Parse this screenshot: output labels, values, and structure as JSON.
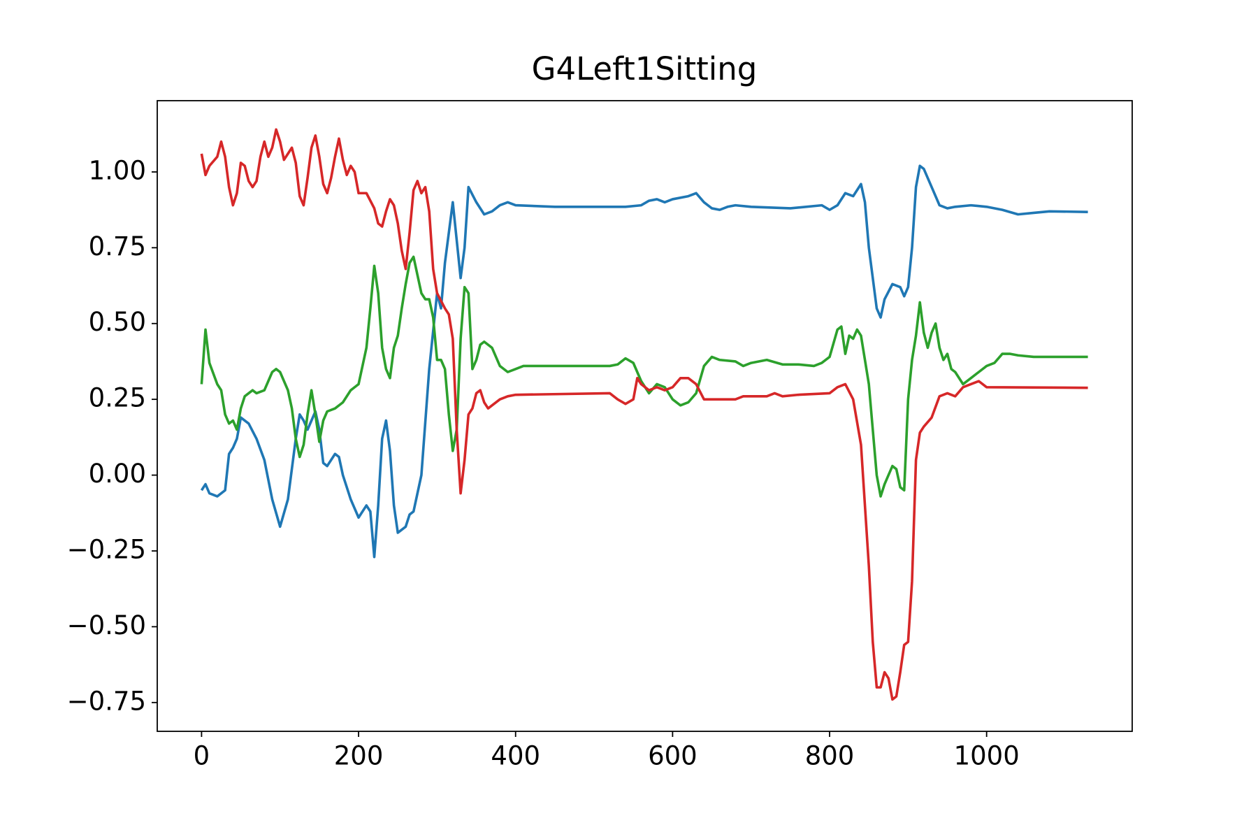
{
  "chart_data": {
    "type": "line",
    "title": "G4Left1Sitting",
    "xlim": [
      -56.45,
      1185.45
    ],
    "ylim": [
      -0.845,
      1.235
    ],
    "xticks": [
      0,
      200,
      400,
      600,
      800,
      1000
    ],
    "yticks": [
      {
        "value": -0.75,
        "label": "−0.75"
      },
      {
        "value": -0.5,
        "label": "−0.50"
      },
      {
        "value": -0.25,
        "label": "−0.25"
      },
      {
        "value": 0,
        "label": "0.00"
      },
      0.25,
      {
        "value": 0.5,
        "label": "0.50"
      },
      0.75,
      {
        "value": 1,
        "label": "1.00"
      }
    ],
    "grid": false,
    "series": [
      {
        "color": "#1f77b4",
        "x": [
          0,
          5,
          10,
          20,
          30,
          35,
          40,
          45,
          50,
          60,
          70,
          80,
          90,
          100,
          110,
          120,
          125,
          130,
          135,
          140,
          145,
          150,
          155,
          160,
          170,
          175,
          180,
          190,
          200,
          210,
          215,
          220,
          225,
          230,
          235,
          240,
          245,
          250,
          260,
          265,
          270,
          280,
          290,
          300,
          305,
          310,
          320,
          330,
          335,
          340,
          350,
          360,
          370,
          380,
          390,
          400,
          450,
          500,
          540,
          560,
          570,
          580,
          590,
          600,
          620,
          630,
          640,
          650,
          660,
          670,
          680,
          700,
          750,
          790,
          800,
          810,
          820,
          830,
          840,
          845,
          850,
          860,
          865,
          870,
          880,
          890,
          895,
          900,
          905,
          910,
          915,
          920,
          930,
          940,
          950,
          960,
          980,
          1000,
          1020,
          1040,
          1060,
          1080,
          1129
        ],
        "values": [
          -0.05,
          -0.03,
          -0.06,
          -0.07,
          -0.05,
          0.07,
          0.09,
          0.12,
          0.19,
          0.17,
          0.12,
          0.05,
          -0.08,
          -0.17,
          -0.08,
          0.12,
          0.2,
          0.18,
          0.15,
          0.18,
          0.21,
          0.15,
          0.04,
          0.03,
          0.07,
          0.06,
          0.0,
          -0.08,
          -0.14,
          -0.1,
          -0.12,
          -0.27,
          -0.1,
          0.12,
          0.18,
          0.08,
          -0.1,
          -0.19,
          -0.17,
          -0.13,
          -0.12,
          0.0,
          0.35,
          0.6,
          0.55,
          0.7,
          0.9,
          0.65,
          0.75,
          0.95,
          0.9,
          0.86,
          0.87,
          0.89,
          0.9,
          0.89,
          0.885,
          0.885,
          0.885,
          0.89,
          0.905,
          0.91,
          0.9,
          0.91,
          0.92,
          0.93,
          0.9,
          0.88,
          0.875,
          0.885,
          0.89,
          0.885,
          0.88,
          0.89,
          0.875,
          0.89,
          0.93,
          0.92,
          0.96,
          0.9,
          0.75,
          0.55,
          0.52,
          0.58,
          0.63,
          0.62,
          0.59,
          0.62,
          0.75,
          0.95,
          1.02,
          1.01,
          0.95,
          0.89,
          0.88,
          0.885,
          0.89,
          0.885,
          0.875,
          0.86,
          0.865,
          0.87,
          0.868
        ]
      },
      {
        "color": "#2ca02c",
        "x": [
          0,
          5,
          10,
          20,
          25,
          30,
          35,
          40,
          45,
          50,
          55,
          60,
          65,
          70,
          80,
          90,
          95,
          100,
          110,
          115,
          120,
          125,
          130,
          135,
          140,
          145,
          150,
          155,
          160,
          170,
          180,
          190,
          200,
          210,
          215,
          220,
          225,
          230,
          235,
          240,
          245,
          250,
          255,
          260,
          265,
          270,
          275,
          280,
          285,
          290,
          295,
          300,
          305,
          310,
          315,
          320,
          325,
          330,
          335,
          340,
          345,
          350,
          355,
          360,
          370,
          380,
          390,
          400,
          410,
          520,
          530,
          540,
          550,
          560,
          570,
          580,
          590,
          600,
          610,
          620,
          630,
          640,
          650,
          660,
          680,
          690,
          700,
          720,
          740,
          760,
          780,
          790,
          800,
          810,
          815,
          820,
          825,
          830,
          835,
          840,
          850,
          855,
          860,
          865,
          870,
          880,
          885,
          890,
          895,
          900,
          905,
          910,
          915,
          920,
          925,
          930,
          935,
          940,
          945,
          950,
          955,
          960,
          970,
          980,
          990,
          1000,
          1010,
          1020,
          1030,
          1040,
          1060,
          1129
        ],
        "values": [
          0.3,
          0.48,
          0.37,
          0.3,
          0.28,
          0.2,
          0.17,
          0.18,
          0.15,
          0.22,
          0.26,
          0.27,
          0.28,
          0.27,
          0.28,
          0.34,
          0.35,
          0.34,
          0.28,
          0.22,
          0.12,
          0.06,
          0.1,
          0.2,
          0.28,
          0.2,
          0.11,
          0.18,
          0.21,
          0.22,
          0.24,
          0.28,
          0.3,
          0.42,
          0.55,
          0.69,
          0.6,
          0.42,
          0.35,
          0.32,
          0.42,
          0.46,
          0.55,
          0.63,
          0.7,
          0.72,
          0.66,
          0.6,
          0.58,
          0.58,
          0.52,
          0.38,
          0.38,
          0.35,
          0.2,
          0.08,
          0.15,
          0.45,
          0.62,
          0.6,
          0.35,
          0.38,
          0.43,
          0.44,
          0.42,
          0.36,
          0.34,
          0.35,
          0.36,
          0.36,
          0.365,
          0.385,
          0.37,
          0.31,
          0.27,
          0.3,
          0.29,
          0.25,
          0.23,
          0.24,
          0.27,
          0.36,
          0.39,
          0.38,
          0.375,
          0.36,
          0.37,
          0.38,
          0.365,
          0.365,
          0.36,
          0.37,
          0.39,
          0.48,
          0.49,
          0.4,
          0.46,
          0.45,
          0.48,
          0.46,
          0.3,
          0.15,
          0.0,
          -0.07,
          -0.03,
          0.03,
          0.02,
          -0.04,
          -0.05,
          0.25,
          0.38,
          0.46,
          0.57,
          0.47,
          0.42,
          0.47,
          0.5,
          0.42,
          0.38,
          0.4,
          0.35,
          0.34,
          0.3,
          0.32,
          0.34,
          0.36,
          0.37,
          0.4,
          0.4,
          0.395,
          0.39,
          0.39
        ]
      },
      {
        "color": "#d62728",
        "x": [
          0,
          5,
          10,
          20,
          25,
          30,
          35,
          40,
          45,
          50,
          55,
          60,
          65,
          70,
          75,
          80,
          85,
          90,
          95,
          100,
          105,
          110,
          115,
          120,
          125,
          130,
          135,
          140,
          145,
          150,
          155,
          160,
          165,
          170,
          175,
          180,
          185,
          190,
          195,
          200,
          210,
          220,
          225,
          230,
          235,
          240,
          245,
          250,
          255,
          260,
          265,
          270,
          275,
          280,
          285,
          290,
          295,
          300,
          310,
          315,
          320,
          325,
          330,
          335,
          340,
          345,
          350,
          355,
          360,
          365,
          370,
          380,
          390,
          400,
          520,
          530,
          540,
          550,
          555,
          560,
          570,
          580,
          590,
          600,
          610,
          620,
          630,
          640,
          660,
          680,
          690,
          720,
          730,
          740,
          760,
          800,
          810,
          820,
          830,
          840,
          850,
          855,
          860,
          865,
          870,
          875,
          880,
          885,
          890,
          895,
          900,
          905,
          910,
          915,
          920,
          930,
          940,
          950,
          960,
          970,
          980,
          990,
          1000,
          1129
        ],
        "values": [
          1.06,
          0.99,
          1.02,
          1.05,
          1.1,
          1.05,
          0.95,
          0.89,
          0.93,
          1.03,
          1.02,
          0.97,
          0.95,
          0.97,
          1.05,
          1.1,
          1.05,
          1.08,
          1.14,
          1.1,
          1.04,
          1.06,
          1.08,
          1.03,
          0.92,
          0.89,
          0.98,
          1.08,
          1.12,
          1.05,
          0.96,
          0.93,
          0.98,
          1.05,
          1.11,
          1.04,
          0.99,
          1.02,
          1.0,
          0.93,
          0.93,
          0.88,
          0.83,
          0.82,
          0.87,
          0.91,
          0.89,
          0.83,
          0.74,
          0.68,
          0.8,
          0.94,
          0.97,
          0.93,
          0.95,
          0.87,
          0.68,
          0.6,
          0.55,
          0.53,
          0.45,
          0.15,
          -0.06,
          0.05,
          0.2,
          0.22,
          0.27,
          0.28,
          0.24,
          0.22,
          0.23,
          0.25,
          0.26,
          0.265,
          0.27,
          0.25,
          0.235,
          0.25,
          0.32,
          0.3,
          0.28,
          0.29,
          0.28,
          0.29,
          0.32,
          0.32,
          0.3,
          0.25,
          0.25,
          0.25,
          0.26,
          0.26,
          0.27,
          0.26,
          0.265,
          0.27,
          0.29,
          0.3,
          0.25,
          0.1,
          -0.3,
          -0.55,
          -0.7,
          -0.7,
          -0.65,
          -0.67,
          -0.74,
          -0.73,
          -0.65,
          -0.56,
          -0.55,
          -0.35,
          0.05,
          0.14,
          0.16,
          0.19,
          0.26,
          0.27,
          0.26,
          0.29,
          0.3,
          0.31,
          0.29,
          0.288
        ]
      }
    ]
  }
}
